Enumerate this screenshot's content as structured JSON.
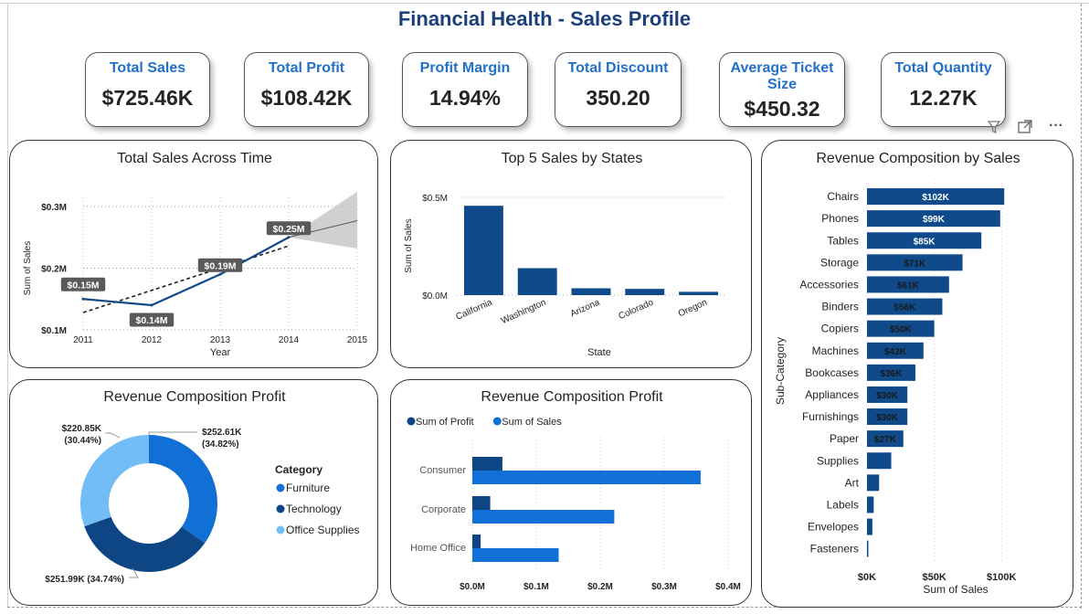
{
  "title": "Financial Health - Sales Profile",
  "kpis": [
    {
      "label": "Total Sales",
      "value": "$725.46K"
    },
    {
      "label": "Total Profit",
      "value": "$108.42K"
    },
    {
      "label": "Profit Margin",
      "value": "14.94%"
    },
    {
      "label": "Total Discount",
      "value": "350.20"
    },
    {
      "label": "Average Ticket Size",
      "value": "$450.32"
    },
    {
      "label": "Total Quantity",
      "value": "12.27K"
    }
  ],
  "visual_header_icons": [
    "filter-icon",
    "focus-mode-icon",
    "more-options-icon"
  ],
  "more_options_glyph": "···",
  "chart_data": [
    {
      "type": "line",
      "title": "Total Sales Across Time",
      "xlabel": "Year",
      "ylabel": "Sum of Sales",
      "x": [
        2011,
        2012,
        2013,
        2014
      ],
      "series": [
        {
          "values": [
            0.15,
            0.14,
            0.19,
            0.25
          ]
        }
      ],
      "data_labels": [
        "$0.15M",
        "$0.14M",
        "$0.19M",
        "$0.25M"
      ],
      "xlim": [
        2011,
        2015
      ],
      "xticks": [
        "2011",
        "2012",
        "2013",
        "2014",
        "2015"
      ],
      "ylim": [
        0.1,
        0.3
      ],
      "yticks": [
        {
          "v": 0.1,
          "label": "$0.1M"
        },
        {
          "v": 0.2,
          "label": "$0.2M"
        },
        {
          "v": 0.3,
          "label": "$0.3M"
        }
      ],
      "trend_line": {
        "x": [
          2011,
          2014
        ],
        "y": [
          0.128,
          0.236
        ]
      },
      "forecast": {
        "x": [
          2014,
          2015
        ],
        "y": [
          0.25,
          0.277
        ],
        "upper": [
          0.25,
          0.324
        ],
        "lower": [
          0.25,
          0.232
        ]
      },
      "grid": true
    },
    {
      "type": "bar",
      "title": "Top 5 Sales by States",
      "xlabel": "State",
      "ylabel": "Sum of Sales",
      "categories": [
        "California",
        "Washington",
        "Arizona",
        "Colorado",
        "Oregon"
      ],
      "values": [
        0.457,
        0.138,
        0.035,
        0.032,
        0.017
      ],
      "ylim": [
        0,
        0.5
      ],
      "yticks": [
        {
          "v": 0,
          "label": "$0.0M"
        },
        {
          "v": 0.5,
          "label": "$0.5M"
        }
      ],
      "grid": true
    },
    {
      "type": "bar",
      "orientation": "horizontal",
      "title": "Revenue Composition by Sales",
      "xlabel": "Sum of Sales",
      "ylabel": "Sub-Category",
      "categories": [
        "Chairs",
        "Phones",
        "Tables",
        "Storage",
        "Accessories",
        "Binders",
        "Copiers",
        "Machines",
        "Bookcases",
        "Appliances",
        "Furnishings",
        "Paper",
        "Supplies",
        "Art",
        "Labels",
        "Envelopes",
        "Fasteners"
      ],
      "values": [
        102,
        99,
        85,
        71,
        61,
        56,
        50,
        42,
        36,
        30,
        30,
        27,
        18,
        9,
        5,
        4,
        1
      ],
      "data_labels": [
        "$102K",
        "$99K",
        "$85K",
        "$71K",
        "$61K",
        "$56K",
        "$50K",
        "$42K",
        "$36K",
        "$30K",
        "$30K",
        "$27K",
        "",
        "",
        "",
        "",
        ""
      ],
      "xlim": [
        0,
        110
      ],
      "xticks": [
        {
          "v": 0,
          "label": "$0K"
        },
        {
          "v": 50,
          "label": "$50K"
        },
        {
          "v": 100,
          "label": "$100K"
        }
      ],
      "color": "#0f4a8a"
    },
    {
      "type": "pie",
      "donut": true,
      "title": "Revenue Composition Profit",
      "legend_title": "Category",
      "slices": [
        {
          "name": "Furniture",
          "value": 252.61,
          "label": "$252.61K\n(34.82%)",
          "color": "#1170d6"
        },
        {
          "name": "Technology",
          "value": 251.99,
          "label": "$251.99K (34.74%)",
          "color": "#0d4585"
        },
        {
          "name": "Office Supplies",
          "value": 220.85,
          "label": "$220.85K\n(30.44%)",
          "color": "#73bdf7"
        }
      ],
      "legend_position": "right"
    },
    {
      "type": "bar",
      "orientation": "horizontal",
      "title": "Revenue Composition Profit",
      "categories": [
        "Consumer",
        "Corporate",
        "Home Office"
      ],
      "series": [
        {
          "name": "Sum of Profit",
          "values": [
            0.047,
            0.028,
            0.013
          ],
          "color": "#0d4585"
        },
        {
          "name": "Sum of Sales",
          "values": [
            0.357,
            0.222,
            0.135
          ],
          "color": "#1170d6"
        }
      ],
      "xlim": [
        0,
        0.4
      ],
      "xticks": [
        {
          "v": 0,
          "label": "$0.0M"
        },
        {
          "v": 0.1,
          "label": "$0.1M"
        },
        {
          "v": 0.2,
          "label": "$0.2M"
        },
        {
          "v": 0.3,
          "label": "$0.3M"
        },
        {
          "v": 0.4,
          "label": "$0.4M"
        }
      ],
      "legend_position": "top-left",
      "grid": true
    }
  ]
}
